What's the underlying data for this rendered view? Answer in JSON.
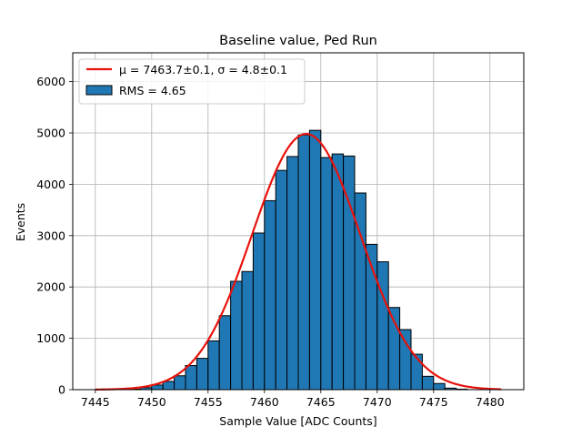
{
  "chart_data": {
    "type": "bar",
    "title": "Baseline value, Ped Run",
    "xlabel": "Sample Value [ADC Counts]",
    "ylabel": "Events",
    "xlim": [
      7443.0,
      7483.0
    ],
    "ylim": [
      0,
      6560
    ],
    "x_ticks": [
      7445,
      7450,
      7455,
      7460,
      7465,
      7470,
      7475,
      7480
    ],
    "y_ticks": [
      0,
      1000,
      2000,
      3000,
      4000,
      5000,
      6000
    ],
    "grid": true,
    "legend_position": "top-left",
    "bin_width": 1.0,
    "histogram": {
      "name": "RMS = 4.65",
      "color": "#1f77b4",
      "edge_color": "#000000",
      "bin_left_edges": [
        7448,
        7449,
        7450,
        7451,
        7452,
        7453,
        7454,
        7455,
        7456,
        7457,
        7458,
        7459,
        7460,
        7461,
        7462,
        7463,
        7464,
        7465,
        7466,
        7467,
        7468,
        7469,
        7470,
        7471,
        7472,
        7473,
        7474,
        7475,
        7476,
        7477
      ],
      "values": [
        10,
        40,
        90,
        160,
        270,
        470,
        610,
        950,
        1440,
        2110,
        2300,
        3050,
        3680,
        4270,
        4540,
        4960,
        5050,
        4520,
        4590,
        4550,
        3830,
        2830,
        2490,
        1600,
        1170,
        690,
        260,
        120,
        30,
        10
      ]
    },
    "fit": {
      "name": "μ = 7463.7±0.1, σ = 4.8±0.1",
      "color": "#e8120c",
      "mu": 7463.7,
      "sigma": 4.8,
      "amplitude": 4980,
      "x_range": [
        7445,
        7481
      ]
    }
  }
}
